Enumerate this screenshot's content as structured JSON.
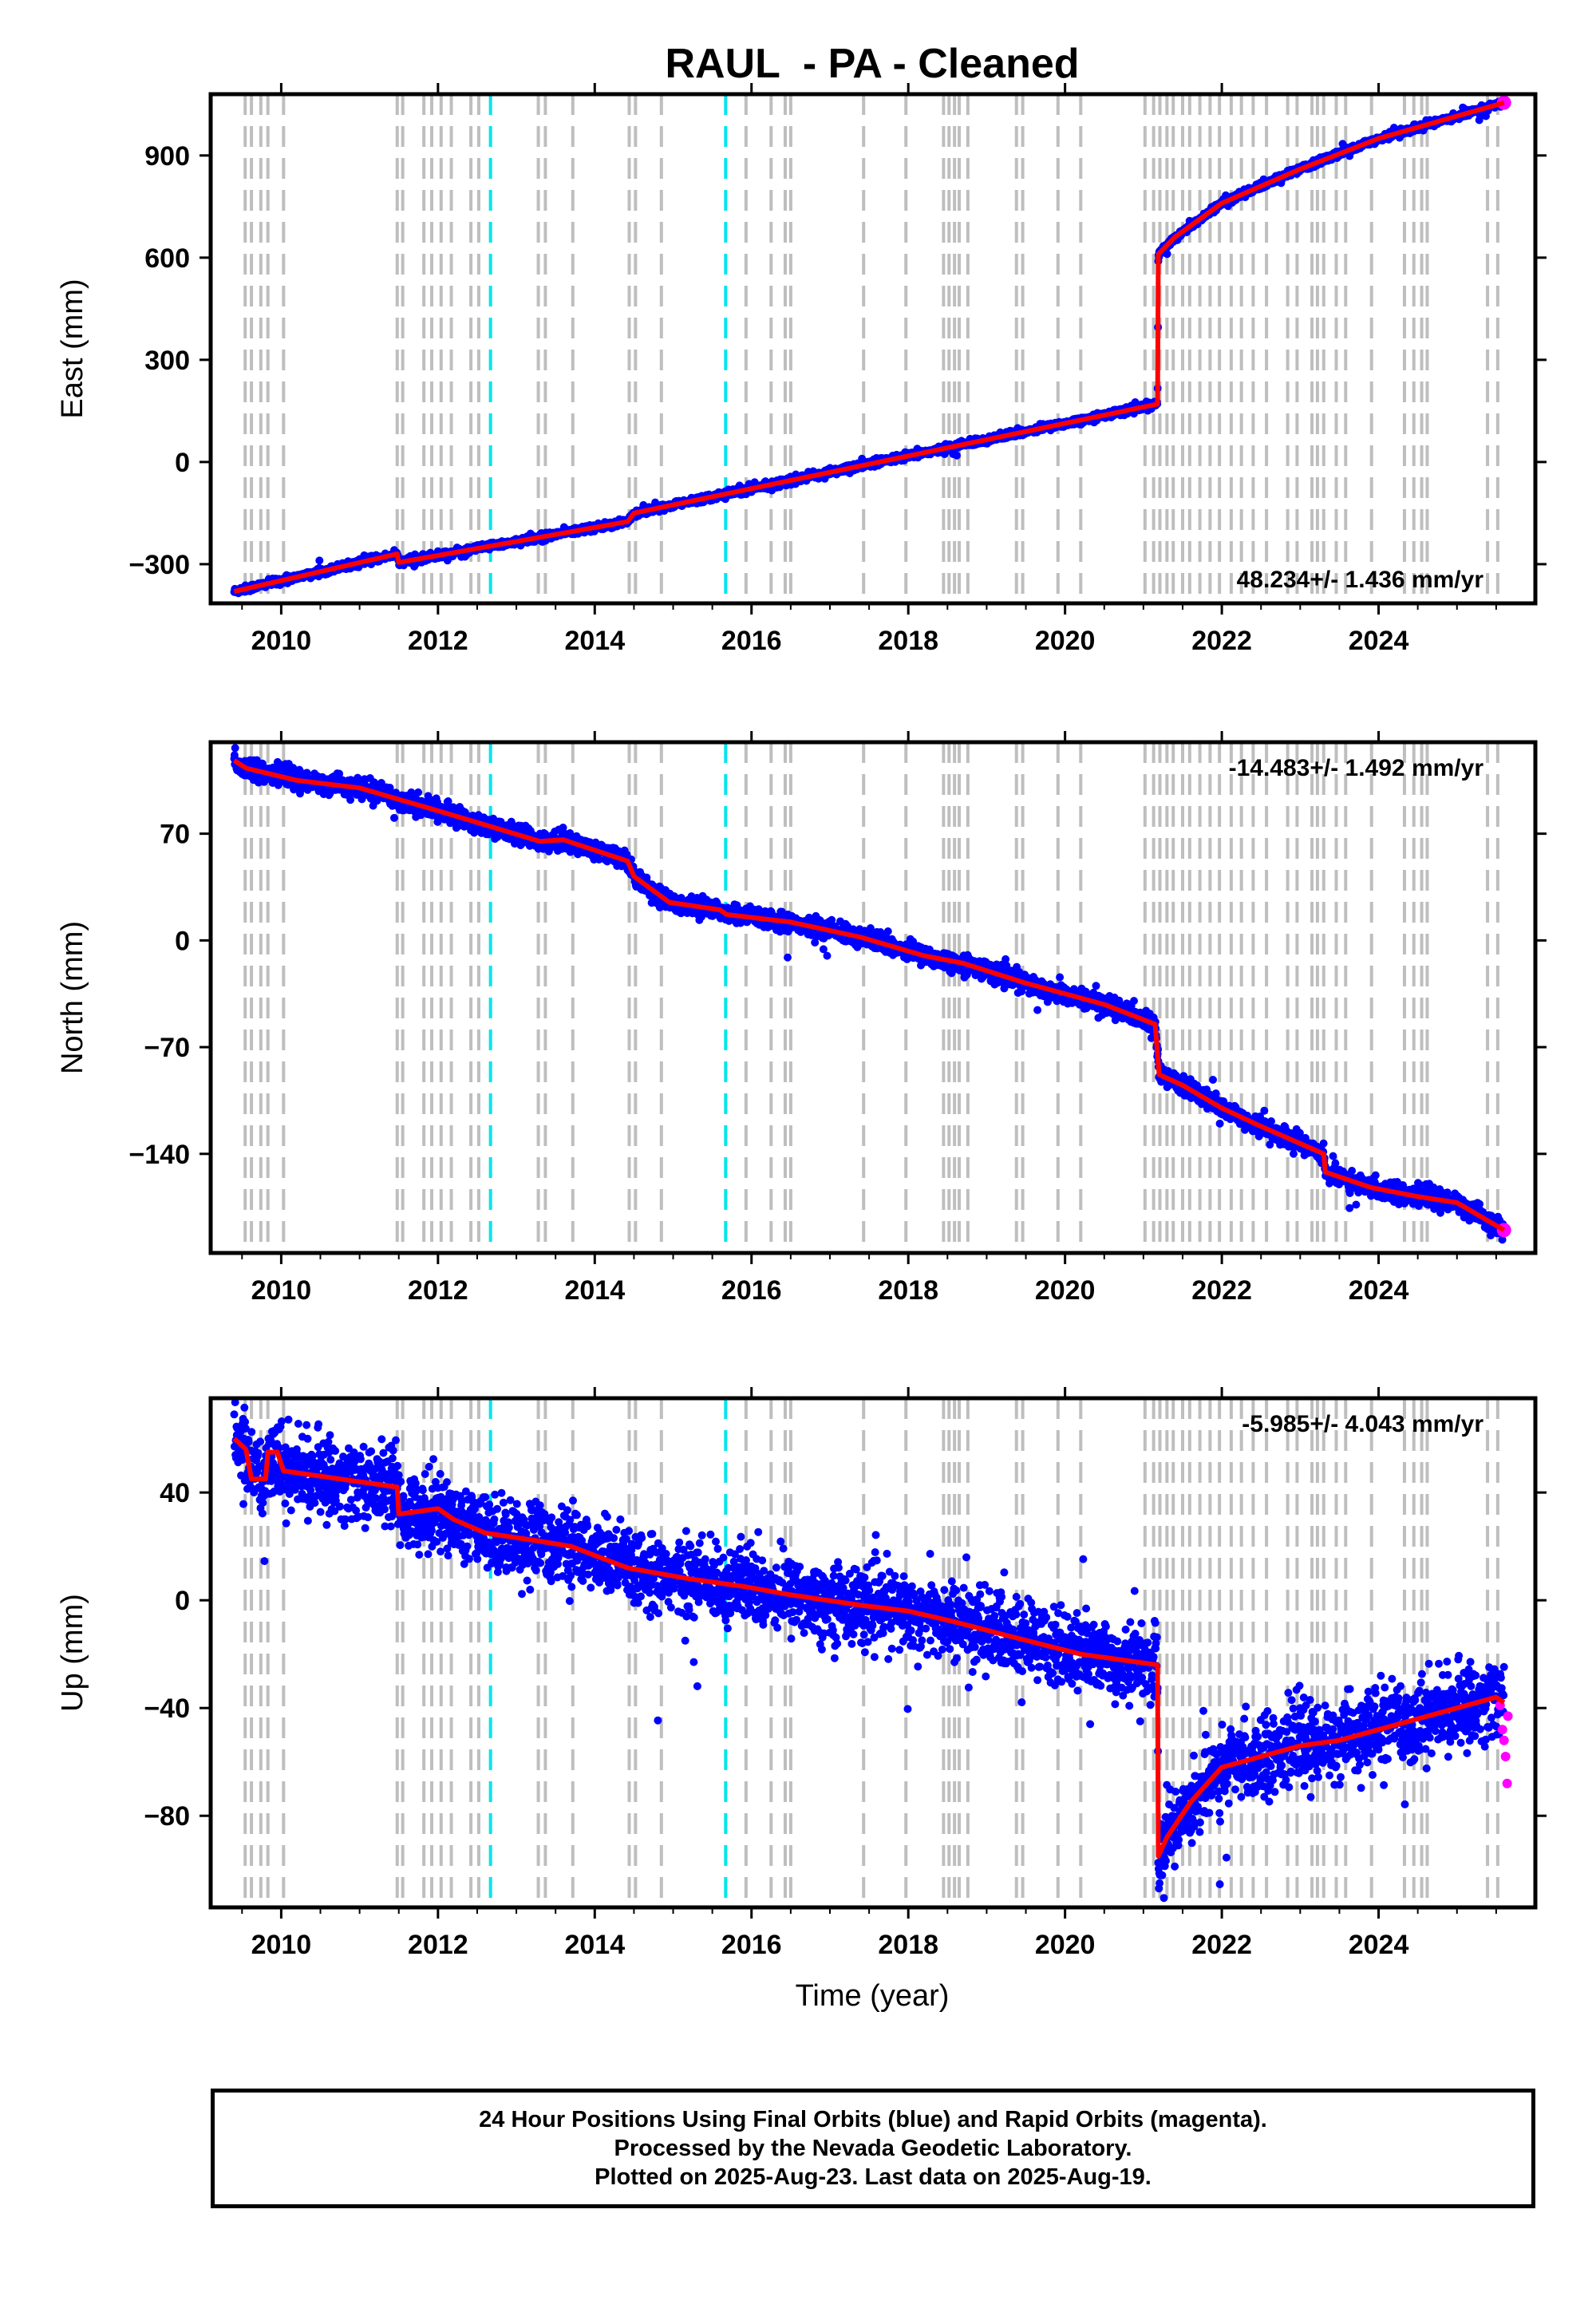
{
  "chart_data": {
    "type": "scatter",
    "title": "RAUL  - PA - Cleaned",
    "xlabel": "Time (year)",
    "xlim": [
      2009.1,
      2026.0
    ],
    "x_ticks": [
      "2010",
      "2012",
      "2014",
      "2016",
      "2018",
      "2020",
      "2022",
      "2024"
    ],
    "x_tick_values": [
      2010,
      2012,
      2014,
      2016,
      2018,
      2020,
      2022,
      2024
    ],
    "grid": false,
    "colors": {
      "final_orbits": "#0000ff",
      "rapid_orbits": "#ff00ff",
      "model": "#ff0000",
      "equipment_change": "#bebebe",
      "earthquake": "#00e5ee"
    },
    "event_lines_gray": [
      2009.54,
      2009.62,
      2009.74,
      2009.83,
      2010.03,
      2011.48,
      2011.55,
      2011.82,
      2011.92,
      2012.04,
      2012.17,
      2012.42,
      2012.52,
      2013.28,
      2013.37,
      2013.72,
      2014.44,
      2014.52,
      2014.85,
      2015.93,
      2016.25,
      2016.43,
      2016.5,
      2017.43,
      2017.97,
      2018.45,
      2018.52,
      2018.59,
      2018.65,
      2018.76,
      2019.38,
      2019.46,
      2019.91,
      2020.2,
      2021.02,
      2021.13,
      2021.21,
      2021.3,
      2021.38,
      2021.5,
      2021.59,
      2021.72,
      2021.85,
      2021.97,
      2022.12,
      2022.25,
      2022.4,
      2022.57,
      2022.84,
      2022.96,
      2023.15,
      2023.22,
      2023.3,
      2023.46,
      2023.58,
      2023.91,
      2024.33,
      2024.45,
      2024.55,
      2024.62,
      2025.39,
      2025.52
    ],
    "event_lines_cyan": [
      2012.67,
      2015.67
    ],
    "panels": [
      {
        "name": "East",
        "ylabel": "East (mm)",
        "ylim": [
          -415,
          1080
        ],
        "y_ticks": [
          "−300",
          "0",
          "300",
          "600",
          "900"
        ],
        "y_tick_values": [
          -300,
          0,
          300,
          600,
          900
        ],
        "rate": "48.234+/- 1.436 mm/yr",
        "rate_position": "bottom-right",
        "noise": 5,
        "model": {
          "x": [
            2009.4,
            2011.48,
            2011.5,
            2014.42,
            2014.5,
            2021.18,
            2021.19,
            2021.4,
            2022.0,
            2023.0,
            2024.0,
            2025.6
          ],
          "y": [
            -380,
            -270,
            -295,
            -175,
            -150,
            170,
            610,
            660,
            760,
            860,
            950,
            1055
          ]
        }
      },
      {
        "name": "North",
        "ylabel": "North (mm)",
        "ylim": [
          -205,
          130
        ],
        "y_ticks": [
          "−140",
          "−70",
          "0",
          "70"
        ],
        "y_tick_values": [
          -140,
          -70,
          0,
          70
        ],
        "rate": "-14.483+/- 1.492 mm/yr",
        "rate_position": "top-right",
        "noise": 3,
        "model": {
          "x": [
            2009.4,
            2009.55,
            2010.2,
            2011.0,
            2012.2,
            2013.3,
            2013.6,
            2014.42,
            2014.5,
            2014.95,
            2015.6,
            2015.68,
            2016.5,
            2017.4,
            2018.2,
            2018.7,
            2019.5,
            2020.5,
            2021.15,
            2021.2,
            2021.5,
            2022.0,
            2022.5,
            2023.3,
            2023.32,
            2023.9,
            2024.5,
            2025.0,
            2025.6
          ],
          "y": [
            118,
            113,
            105,
            100,
            82,
            65,
            66,
            52,
            42,
            25,
            20,
            17,
            12,
            2,
            -10,
            -15,
            -28,
            -42,
            -55,
            -88,
            -95,
            -110,
            -122,
            -140,
            -152,
            -162,
            -168,
            -172,
            -190
          ]
        }
      },
      {
        "name": "Up",
        "ylabel": "Up (mm)",
        "ylim": [
          -114,
          75
        ],
        "y_ticks": [
          "−80",
          "−40",
          "0",
          "40"
        ],
        "y_tick_values": [
          -80,
          -40,
          0,
          40
        ],
        "rate": "-5.985+/- 4.043 mm/yr",
        "rate_position": "top-right",
        "noise": 7,
        "model": {
          "x": [
            2009.4,
            2009.55,
            2009.62,
            2009.8,
            2009.83,
            2009.95,
            2010.03,
            2011.48,
            2011.5,
            2012.0,
            2012.2,
            2012.6,
            2013.28,
            2013.7,
            2014.42,
            2015.2,
            2015.93,
            2016.5,
            2017.43,
            2018.0,
            2018.59,
            2019.38,
            2020.2,
            2021.18,
            2021.19,
            2021.3,
            2021.6,
            2022.0,
            2022.5,
            2023.0,
            2023.5,
            2024.0,
            2024.5,
            2025.0,
            2025.5,
            2025.6
          ],
          "y": [
            60,
            56,
            45,
            45,
            55,
            55,
            48,
            42,
            32,
            34,
            30,
            25,
            22,
            20,
            12,
            8,
            5,
            2,
            -2,
            -4,
            -8,
            -14,
            -20,
            -24,
            -95,
            -88,
            -75,
            -62,
            -58,
            -54,
            -52,
            -48,
            -44,
            -40,
            -36,
            -38
          ]
        },
        "rapid": {
          "x": [
            2025.55,
            2025.58,
            2025.6,
            2025.62,
            2025.64,
            2025.65
          ],
          "y": [
            -39,
            -48,
            -52,
            -58,
            -68,
            -43
          ]
        }
      }
    ]
  },
  "footer": {
    "line1": "24 Hour Positions Using Final Orbits (blue) and Rapid Orbits (magenta).",
    "line2": "Processed by the Nevada Geodetic Laboratory.",
    "line3": "Plotted on 2025-Aug-23. Last data on 2025-Aug-19."
  }
}
